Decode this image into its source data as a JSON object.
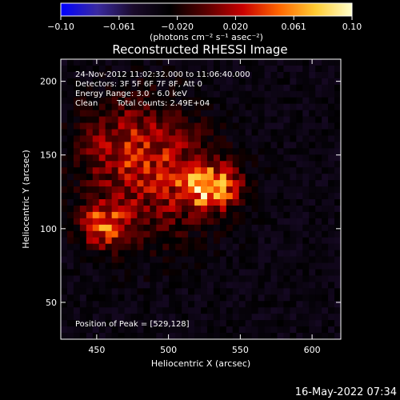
{
  "colorbar": {
    "ticks": [
      "−0.10",
      "−0.061",
      "−0.020",
      "0.020",
      "0.061",
      "0.10"
    ],
    "unit_label": "(photons cm⁻² s⁻¹ asec⁻²)",
    "range": [
      -0.1,
      0.1
    ],
    "stops": [
      "#0000ff",
      "#3a2aa0",
      "#1a0a2a",
      "#000000",
      "#5a0000",
      "#c80000",
      "#ff6600",
      "#ffcc33",
      "#ffffcc"
    ]
  },
  "chart_data": {
    "type": "heatmap",
    "title": "Reconstructed RHESSI Image",
    "xlabel": "Heliocentric X (arcsec)",
    "ylabel": "Heliocentric Y (arcsec)",
    "xlim": [
      425,
      620
    ],
    "ylim": [
      25,
      215
    ],
    "xticks": [
      450,
      500,
      550,
      600
    ],
    "yticks": [
      50,
      100,
      150,
      200
    ],
    "background_color": "#5a2a9a",
    "sources": [
      {
        "x": 529,
        "y": 128,
        "peak": 0.1,
        "sx": 14,
        "sy": 10
      },
      {
        "x": 455,
        "y": 102,
        "peak": 0.075,
        "sx": 11,
        "sy": 10
      },
      {
        "x": 490,
        "y": 135,
        "peak": 0.045,
        "sx": 30,
        "sy": 30
      },
      {
        "x": 470,
        "y": 160,
        "peak": 0.03,
        "sx": 25,
        "sy": 20
      }
    ],
    "annotations": {
      "time": "24-Nov-2012 11:02:32.000 to 11:06:40.000",
      "detectors": "Detectors: 3F 5F 6F 7F 8F, Att 0",
      "energy": "Energy Range: 3.0 - 6.0 keV",
      "method": "Clean",
      "counts": "Total counts: 2.49E+04",
      "peak_position": "Position of Peak = [529,128]"
    }
  },
  "footer": {
    "timestamp": "16-May-2022 07:34"
  }
}
